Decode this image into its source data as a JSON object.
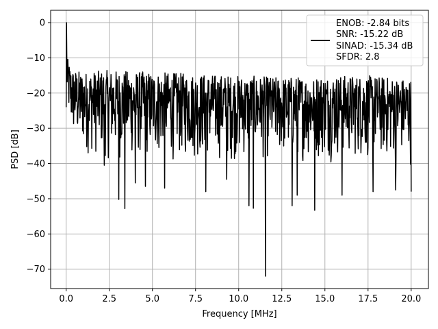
{
  "chart_data": {
    "type": "line",
    "xlabel": "Frequency [MHz]",
    "ylabel": "PSD [dB]",
    "xlim": [
      -0.9,
      21.0
    ],
    "ylim": [
      -75.5,
      3.5
    ],
    "grid": true,
    "legend_position": "top-right",
    "x_ticks": [
      0.0,
      2.5,
      5.0,
      7.5,
      10.0,
      12.5,
      15.0,
      17.5,
      20.0
    ],
    "x_tick_labels": [
      "0.0",
      "2.5",
      "5.0",
      "7.5",
      "10.0",
      "12.5",
      "15.0",
      "17.5",
      "20.0"
    ],
    "y_ticks": [
      0,
      -10,
      -20,
      -30,
      -40,
      -50,
      -60,
      -70
    ],
    "y_tick_labels": [
      "0",
      "−10",
      "−20",
      "−30",
      "−40",
      "−50",
      "−60",
      "−70"
    ],
    "legend": {
      "lines": [
        "ENOB: -2.84 bits",
        "SNR: -15.22 dB",
        "SINAD: -15.34 dB",
        "SFDR: 2.8"
      ]
    },
    "series": [
      {
        "color": "#000000",
        "x_range": [
          0.0,
          20.0
        ],
        "points": 1024,
        "envelope": {
          "x": [
            0.0,
            0.03,
            0.1,
            0.3,
            0.6,
            1.0,
            2.5,
            5.0,
            7.5,
            10.0,
            12.5,
            15.0,
            17.5,
            20.0
          ],
          "top": [
            0.0,
            -7.5,
            -10.5,
            -13.0,
            -13.5,
            -14.0,
            -13.5,
            -14.0,
            -14.5,
            -15.0,
            -15.5,
            -15.0,
            -15.0,
            -16.0
          ],
          "bottom": [
            -24.0,
            -24.0,
            -28.0,
            -34.0,
            -37.0,
            -38.0,
            -40.0,
            -40.0,
            -40.0,
            -40.0,
            -40.0,
            -40.0,
            -40.0,
            -41.0
          ]
        },
        "notable_dips": [
          {
            "x": 2.2,
            "y": -40.5
          },
          {
            "x": 3.05,
            "y": -50.2
          },
          {
            "x": 3.4,
            "y": -52.8
          },
          {
            "x": 4.0,
            "y": -45.5
          },
          {
            "x": 4.6,
            "y": -46.5
          },
          {
            "x": 5.7,
            "y": -47.0
          },
          {
            "x": 8.1,
            "y": -48.0
          },
          {
            "x": 9.3,
            "y": -44.5
          },
          {
            "x": 10.6,
            "y": -52.0
          },
          {
            "x": 10.85,
            "y": -52.7
          },
          {
            "x": 11.55,
            "y": -72.0
          },
          {
            "x": 13.1,
            "y": -52.0
          },
          {
            "x": 13.4,
            "y": -49.0
          },
          {
            "x": 14.4,
            "y": -53.3
          },
          {
            "x": 16.0,
            "y": -49.0
          },
          {
            "x": 17.8,
            "y": -48.0
          },
          {
            "x": 19.1,
            "y": -47.5
          },
          {
            "x": 20.0,
            "y": -48.0
          }
        ]
      }
    ]
  }
}
